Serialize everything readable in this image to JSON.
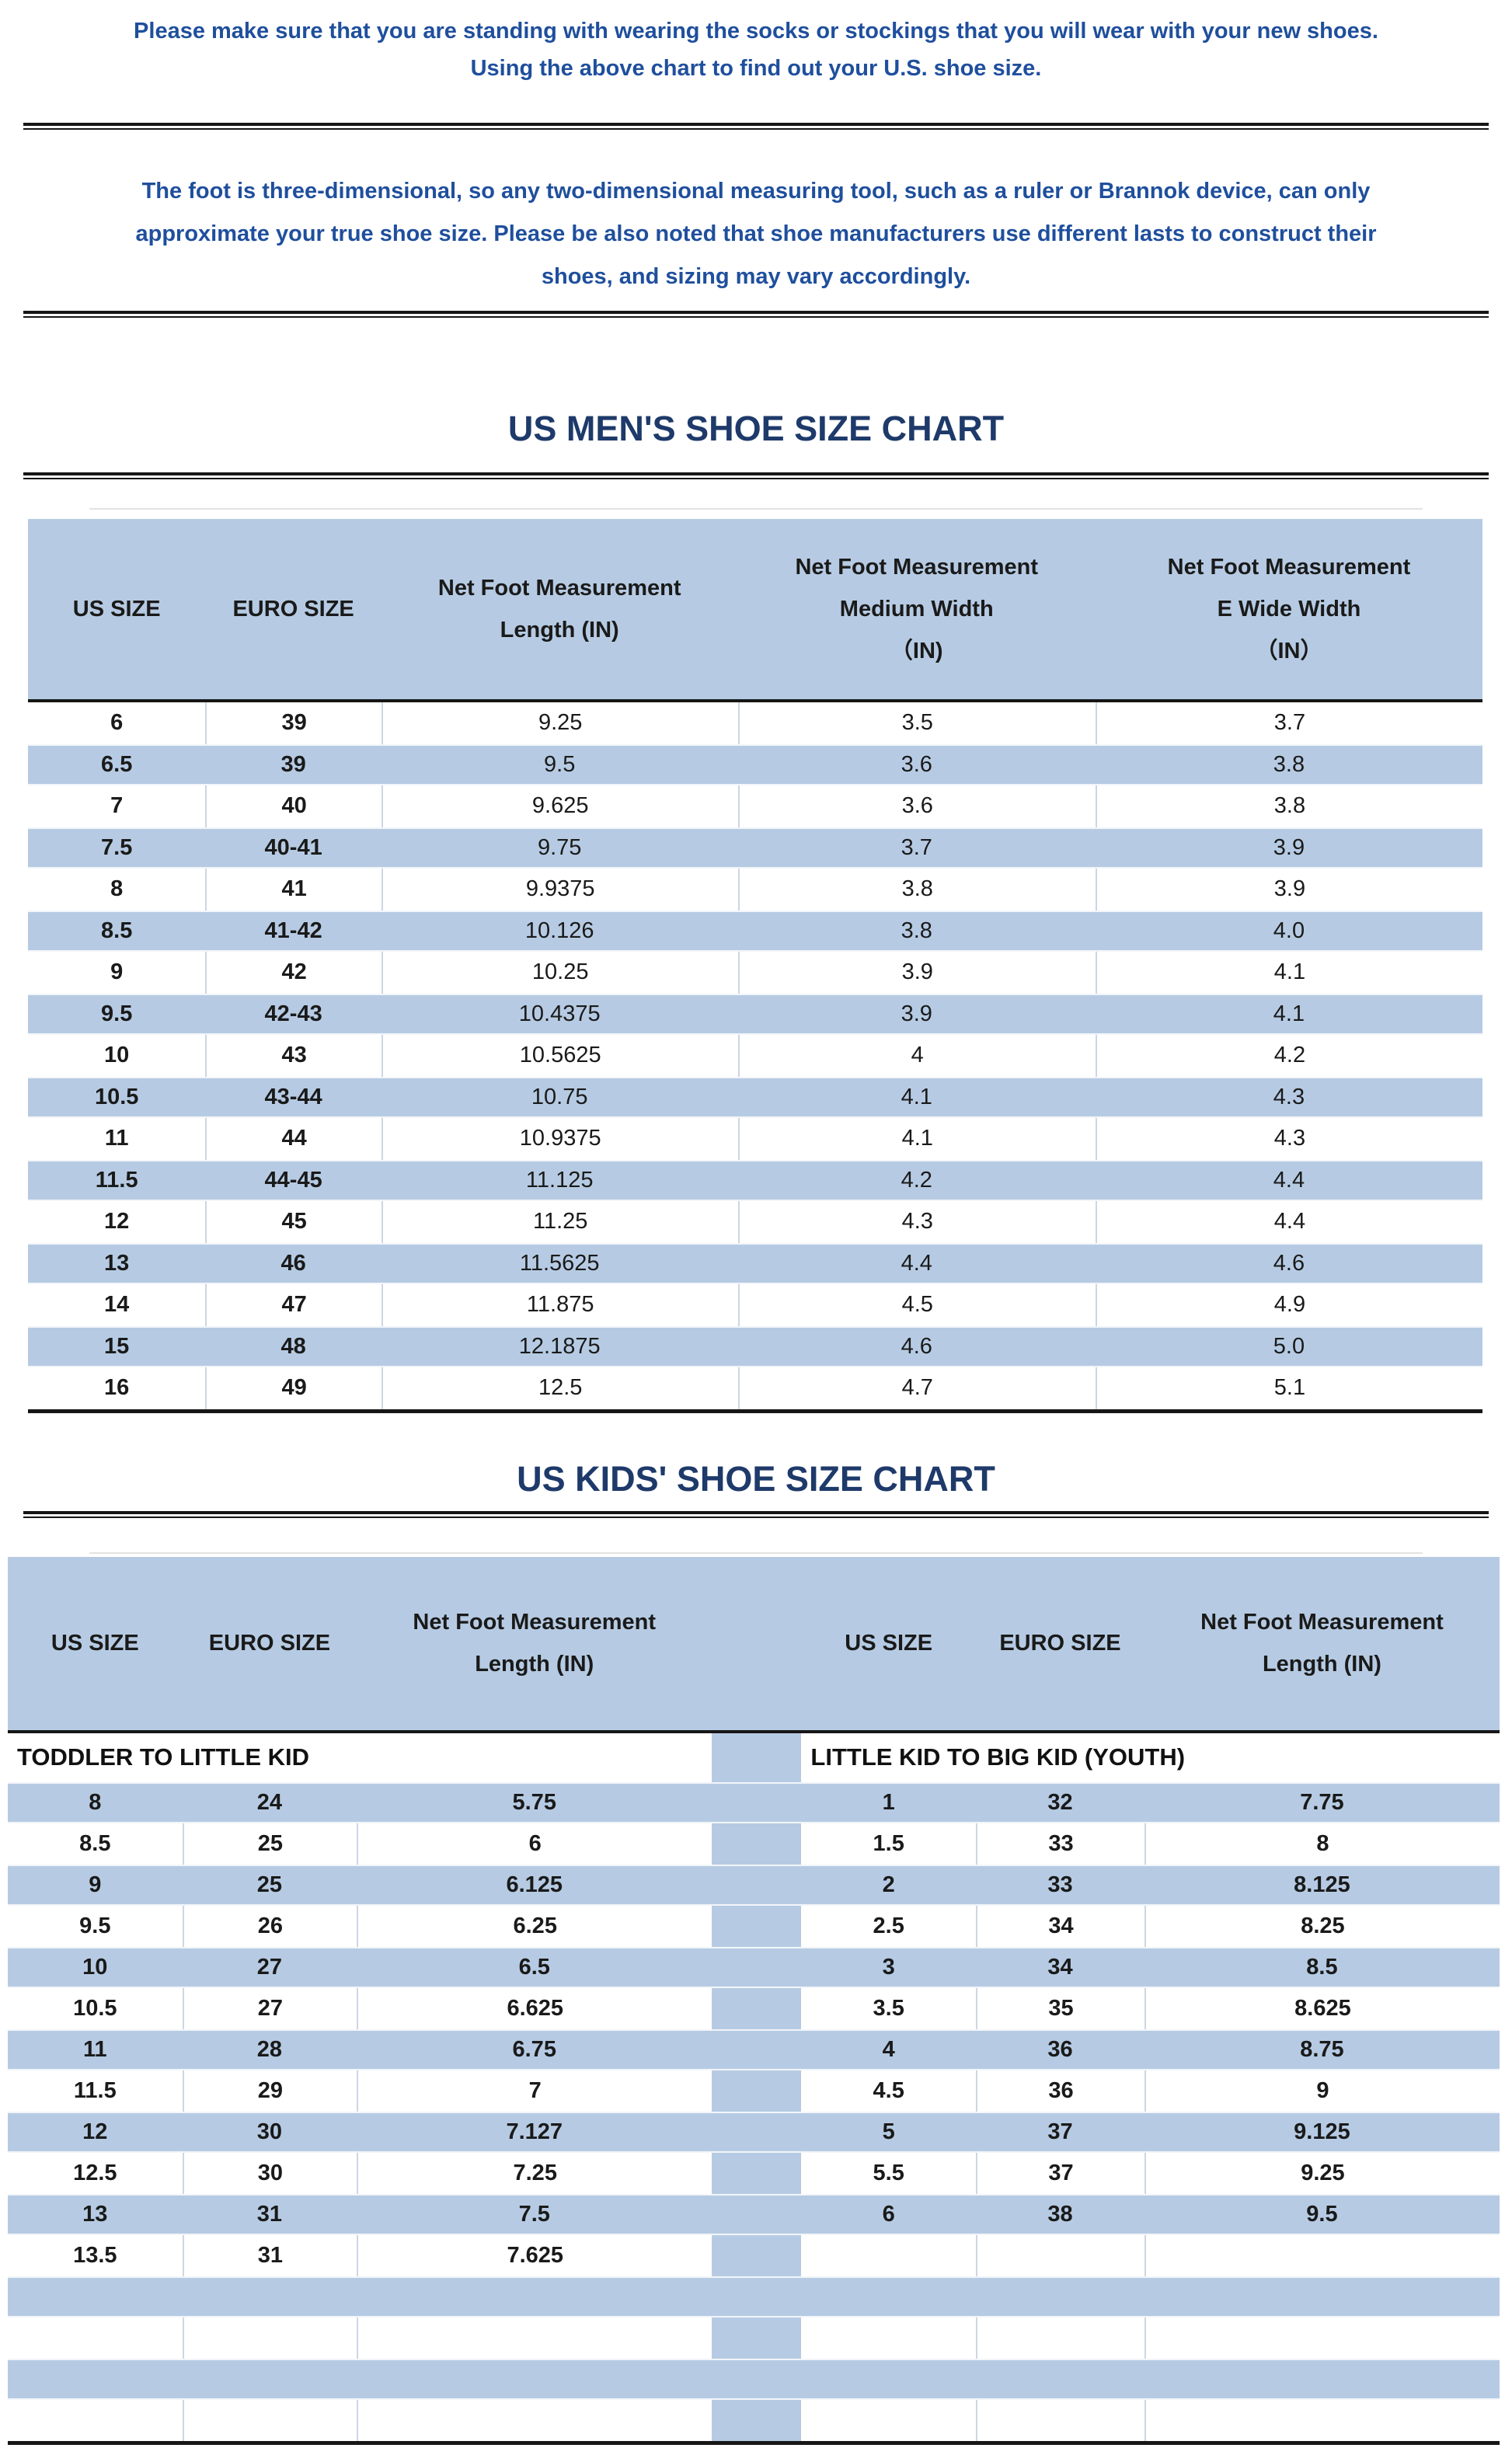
{
  "colors": {
    "note_blue": "#1f4f9d",
    "title_navy": "#1e3a6a",
    "stripe_blue": "#b6cbe3",
    "cell_border": "#cdd6e3",
    "rule_black": "#161616"
  },
  "notes": {
    "fitting_note": "Please make sure that you are standing with wearing the socks or stockings that you will wear with your new shoes.\nUsing the above chart to find out your U.S. shoe size.",
    "disclaimer": "The foot is three-dimensional, so any two-dimensional measuring tool, such as a ruler or Brannok device, can only\napproximate your true shoe size. Please be also noted that shoe manufacturers use different lasts to construct their\nshoes, and sizing may vary accordingly."
  },
  "mens_chart": {
    "title": "US MEN'S SHOE SIZE CHART",
    "columns": [
      "US SIZE",
      "EURO SIZE",
      "Net Foot Measurement\nLength (IN)",
      "Net Foot Measurement\nMedium Width\n（IN)",
      "Net Foot Measurement\nE Wide Width\n（IN）"
    ],
    "rows": [
      [
        "6",
        "39",
        "9.25",
        "3.5",
        "3.7"
      ],
      [
        "6.5",
        "39",
        "9.5",
        "3.6",
        "3.8"
      ],
      [
        "7",
        "40",
        "9.625",
        "3.6",
        "3.8"
      ],
      [
        "7.5",
        "40-41",
        "9.75",
        "3.7",
        "3.9"
      ],
      [
        "8",
        "41",
        "9.9375",
        "3.8",
        "3.9"
      ],
      [
        "8.5",
        "41-42",
        "10.126",
        "3.8",
        "4.0"
      ],
      [
        "9",
        "42",
        "10.25",
        "3.9",
        "4.1"
      ],
      [
        "9.5",
        "42-43",
        "10.4375",
        "3.9",
        "4.1"
      ],
      [
        "10",
        "43",
        "10.5625",
        "4",
        "4.2"
      ],
      [
        "10.5",
        "43-44",
        "10.75",
        "4.1",
        "4.3"
      ],
      [
        "11",
        "44",
        "10.9375",
        "4.1",
        "4.3"
      ],
      [
        "11.5",
        "44-45",
        "11.125",
        "4.2",
        "4.4"
      ],
      [
        "12",
        "45",
        "11.25",
        "4.3",
        "4.4"
      ],
      [
        "13",
        "46",
        "11.5625",
        "4.4",
        "4.6"
      ],
      [
        "14",
        "47",
        "11.875",
        "4.5",
        "4.9"
      ],
      [
        "15",
        "48",
        "12.1875",
        "4.6",
        "5.0"
      ],
      [
        "16",
        "49",
        "12.5",
        "4.7",
        "5.1"
      ]
    ]
  },
  "kids_chart": {
    "title": "US KIDS' SHOE SIZE CHART",
    "columns": [
      "US SIZE",
      "EURO SIZE",
      "Net Foot Measurement\nLength (IN)",
      "US SIZE",
      "EURO SIZE",
      "Net Foot Measurement\nLength (IN)"
    ],
    "left_group_label": "TODDLER TO LITTLE KID",
    "right_group_label": "LITTLE KID TO BIG KID (YOUTH)",
    "rows": [
      [
        "8",
        "24",
        "5.75",
        "1",
        "32",
        "7.75"
      ],
      [
        "8.5",
        "25",
        "6",
        "1.5",
        "33",
        "8"
      ],
      [
        "9",
        "25",
        "6.125",
        "2",
        "33",
        "8.125"
      ],
      [
        "9.5",
        "26",
        "6.25",
        "2.5",
        "34",
        "8.25"
      ],
      [
        "10",
        "27",
        "6.5",
        "3",
        "34",
        "8.5"
      ],
      [
        "10.5",
        "27",
        "6.625",
        "3.5",
        "35",
        "8.625"
      ],
      [
        "11",
        "28",
        "6.75",
        "4",
        "36",
        "8.75"
      ],
      [
        "11.5",
        "29",
        "7",
        "4.5",
        "36",
        "9"
      ],
      [
        "12",
        "30",
        "7.127",
        "5",
        "37",
        "9.125"
      ],
      [
        "12.5",
        "30",
        "7.25",
        "5.5",
        "37",
        "9.25"
      ],
      [
        "13",
        "31",
        "7.5",
        "6",
        "38",
        "9.5"
      ],
      [
        "13.5",
        "31",
        "7.625",
        "",
        "",
        ""
      ],
      [
        "",
        "",
        "",
        "",
        "",
        ""
      ],
      [
        "",
        "",
        "",
        "",
        "",
        ""
      ],
      [
        "",
        "",
        "",
        "",
        "",
        ""
      ],
      [
        "",
        "",
        "",
        "",
        "",
        ""
      ]
    ]
  }
}
